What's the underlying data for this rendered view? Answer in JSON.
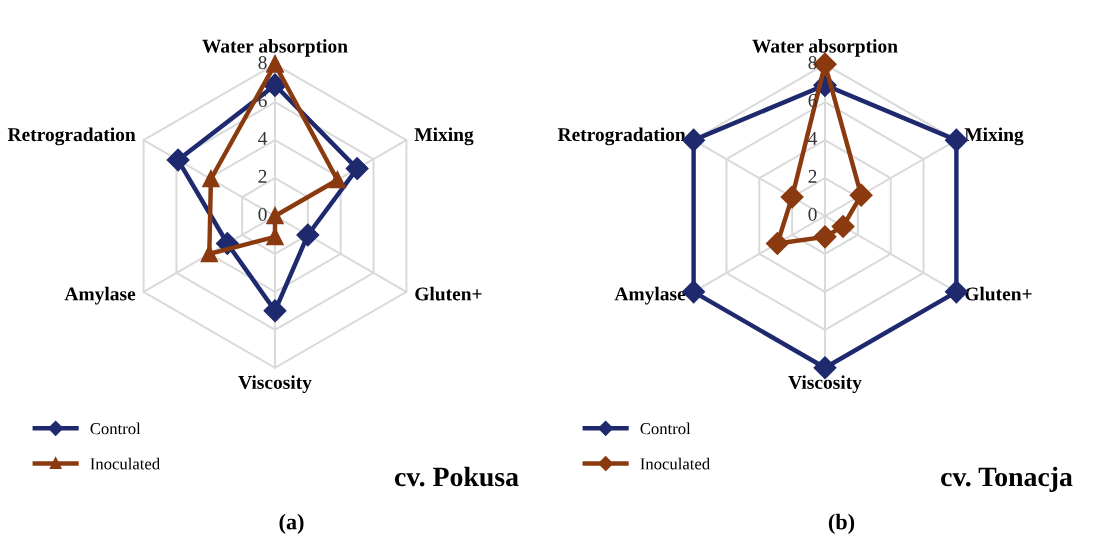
{
  "chart_data": [
    {
      "type": "radar",
      "title": "cv. Pokusa",
      "annotations": [
        "(a)"
      ],
      "categories": [
        "Water absorption",
        "Mixing",
        "Gluten+",
        "Viscosity",
        "Amylase",
        "Retrogradation"
      ],
      "ylim": [
        0,
        8
      ],
      "yticks": [
        0,
        2,
        4,
        6,
        8
      ],
      "grid": true,
      "legend": "bottom left",
      "series": [
        {
          "name": "Control",
          "color": "#1f2a6e",
          "marker": "diamond",
          "values": [
            6.9,
            5.0,
            2.0,
            5.0,
            2.9,
            5.9
          ]
        },
        {
          "name": "Inoculated",
          "color": "#8b3a10",
          "marker": "triangle",
          "values": [
            8.0,
            3.8,
            0,
            1.1,
            4.0,
            3.9
          ]
        }
      ]
    },
    {
      "type": "radar",
      "title": "cv. Tonacja",
      "annotations": [
        "(b)"
      ],
      "categories": [
        "Water absorption",
        "Mixing",
        "Gluten+",
        "Viscosity",
        "Amylase",
        "Retrogradation"
      ],
      "ylim": [
        0,
        8
      ],
      "yticks": [
        0,
        2,
        4,
        6,
        8
      ],
      "grid": true,
      "legend": "bottom left",
      "series": [
        {
          "name": "Control",
          "color": "#1f2a6e",
          "marker": "diamond",
          "values": [
            6.9,
            8,
            8,
            8,
            8,
            8
          ]
        },
        {
          "name": "Inoculated",
          "color": "#8b3a10",
          "marker": "diamond",
          "values": [
            8.0,
            2.2,
            1.1,
            1.1,
            2.9,
            2.0
          ]
        }
      ]
    }
  ]
}
